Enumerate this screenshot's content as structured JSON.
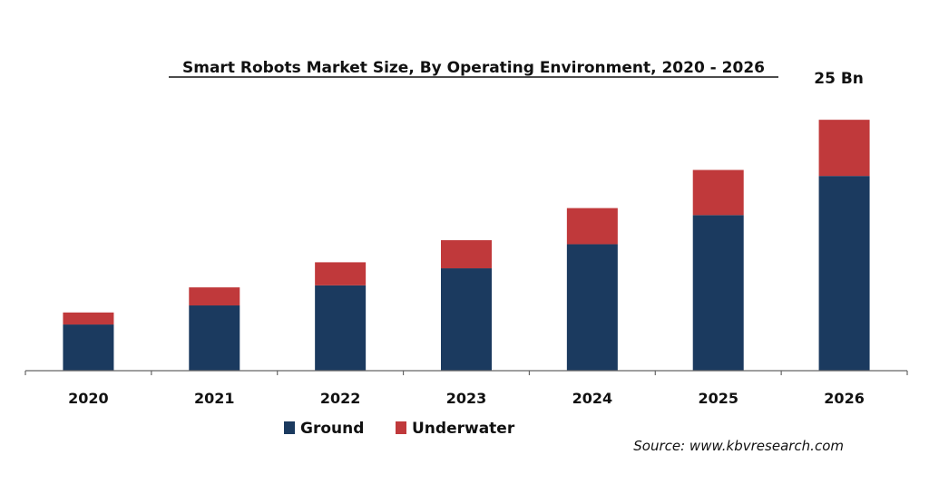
{
  "chart_data": {
    "type": "bar",
    "stacked": true,
    "title": "Smart Robots Market Size, By Operating Environment, 2020 - 2026",
    "categories": [
      "2020",
      "2021",
      "2022",
      "2023",
      "2024",
      "2025",
      "2026"
    ],
    "series": [
      {
        "name": "Ground",
        "color": "#1b3a5f",
        "values": [
          4.6,
          6.5,
          8.5,
          10.2,
          12.6,
          15.5,
          19.4
        ]
      },
      {
        "name": "Underwater",
        "color": "#c0393b",
        "values": [
          1.2,
          1.8,
          2.3,
          2.8,
          3.6,
          4.5,
          5.6
        ]
      }
    ],
    "ylim": [
      0,
      27
    ],
    "grid": false,
    "legend": "bottom",
    "annotation": {
      "category": "2026",
      "text": "25 Bn"
    },
    "source": "Source: www.kbvresearch.com"
  }
}
